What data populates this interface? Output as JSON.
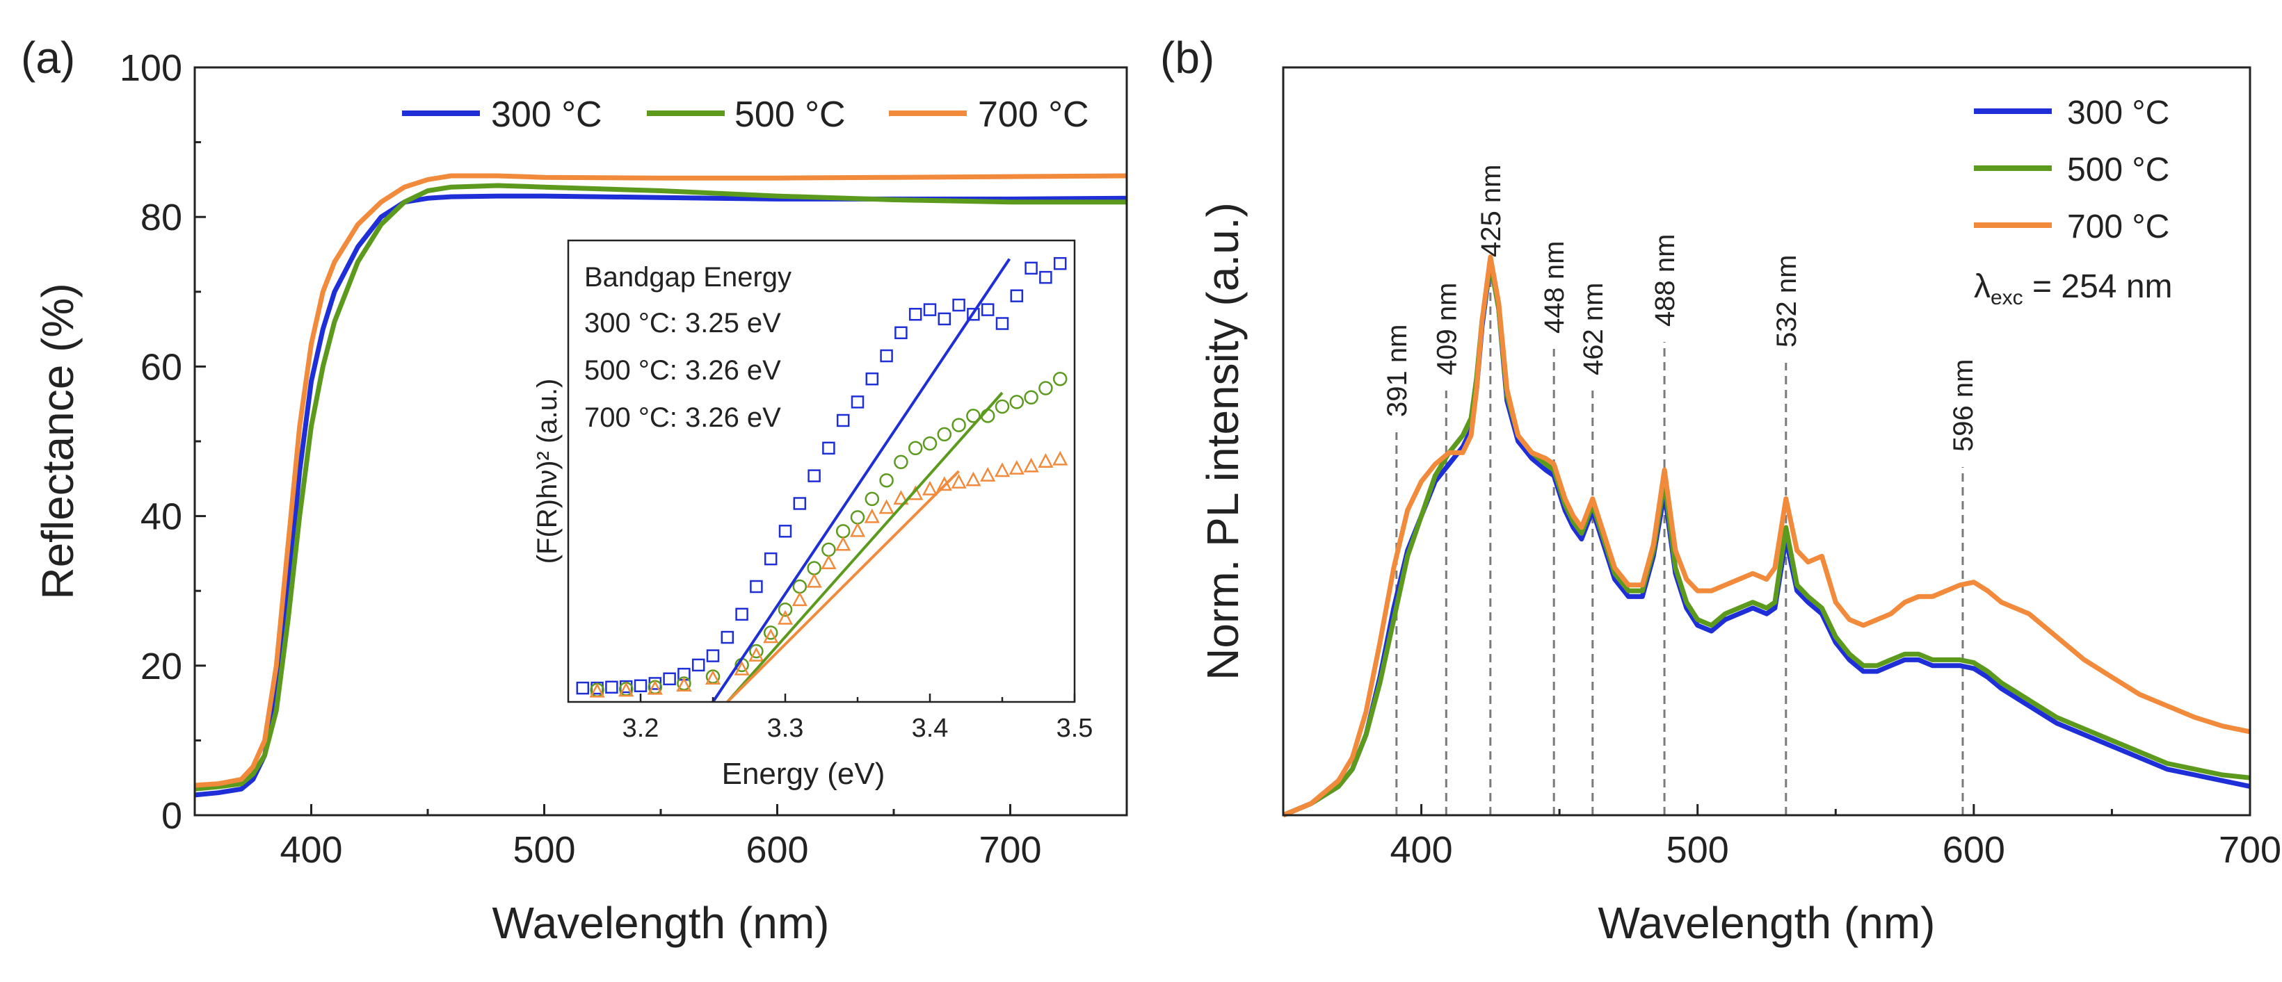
{
  "colors": {
    "c300": "#1f2fd8",
    "c500": "#5c9a1e",
    "c700": "#f28a3c",
    "axis": "#222222",
    "guide": "#7a7a7a"
  },
  "chart_data": [
    {
      "panel": "(a)",
      "type": "line",
      "xlabel": "Wavelength (nm)",
      "ylabel": "Reflectance (%)",
      "xlim": [
        350,
        750
      ],
      "ylim": [
        0,
        100
      ],
      "xticks": [
        400,
        500,
        600,
        700
      ],
      "yticks": [
        0,
        20,
        40,
        60,
        80,
        100
      ],
      "legend": "top-right",
      "series": [
        {
          "name": "300 °C",
          "color": "#1f2fd8",
          "x": [
            350,
            360,
            370,
            375,
            380,
            385,
            390,
            395,
            400,
            405,
            410,
            420,
            430,
            440,
            450,
            460,
            480,
            500,
            550,
            600,
            650,
            700,
            750
          ],
          "y": [
            2.7,
            3.0,
            3.5,
            4.8,
            8,
            16,
            30,
            46,
            58,
            65,
            70,
            76,
            80,
            82,
            82.5,
            82.7,
            82.8,
            82.8,
            82.6,
            82.4,
            82.4,
            82.4,
            82.5
          ]
        },
        {
          "name": "500 °C",
          "color": "#5c9a1e",
          "x": [
            350,
            360,
            370,
            375,
            380,
            385,
            390,
            395,
            400,
            405,
            410,
            420,
            430,
            440,
            450,
            460,
            480,
            500,
            550,
            600,
            650,
            700,
            750
          ],
          "y": [
            3.5,
            3.8,
            4.2,
            5.5,
            8,
            14,
            26,
            40,
            52,
            60,
            66,
            74,
            79,
            82,
            83.5,
            84,
            84.2,
            84,
            83.5,
            82.8,
            82.3,
            82.0,
            82.0
          ]
        },
        {
          "name": "700 °C",
          "color": "#f28a3c",
          "x": [
            350,
            360,
            370,
            375,
            380,
            385,
            390,
            395,
            400,
            405,
            410,
            420,
            430,
            440,
            450,
            460,
            480,
            500,
            550,
            600,
            650,
            700,
            750
          ],
          "y": [
            4.0,
            4.2,
            4.8,
            6.5,
            10,
            20,
            36,
            52,
            63,
            70,
            74,
            79,
            82,
            84,
            85,
            85.5,
            85.5,
            85.3,
            85.2,
            85.2,
            85.3,
            85.4,
            85.5
          ]
        }
      ]
    },
    {
      "panel": "inset",
      "type": "scatter",
      "xlabel": "Energy (eV)",
      "ylabel": "(F(R)hν)² (a.u.)",
      "xlim": [
        3.15,
        3.5
      ],
      "ylim": [
        0,
        100
      ],
      "xticks": [
        3.2,
        3.3,
        3.4,
        3.5
      ],
      "annotations": [
        "Bandgap Energy",
        "300 °C: 3.25 eV",
        "500 °C: 3.26 eV",
        "700 °C: 3.26 eV"
      ],
      "series": [
        {
          "name": "300 °C",
          "color": "#1f2fd8",
          "marker": "square",
          "x": [
            3.15,
            3.16,
            3.17,
            3.18,
            3.19,
            3.2,
            3.21,
            3.22,
            3.23,
            3.24,
            3.25,
            3.26,
            3.27,
            3.28,
            3.29,
            3.3,
            3.31,
            3.32,
            3.33,
            3.34,
            3.35,
            3.36,
            3.37,
            3.38,
            3.39,
            3.4,
            3.41,
            3.42,
            3.43,
            3.44,
            3.45,
            3.46,
            3.47,
            3.48,
            3.49,
            3.5
          ],
          "y": [
            3,
            3,
            3,
            3.2,
            3.3,
            3.5,
            4,
            5,
            6,
            8,
            10,
            14,
            19,
            25,
            31,
            37,
            43,
            49,
            55,
            61,
            65,
            70,
            75,
            80,
            84,
            85,
            83,
            86,
            84,
            85,
            82,
            88,
            94,
            92,
            95,
            96
          ]
        },
        {
          "name": "500 °C",
          "color": "#5c9a1e",
          "marker": "circle",
          "x": [
            3.15,
            3.17,
            3.19,
            3.21,
            3.23,
            3.25,
            3.27,
            3.28,
            3.29,
            3.3,
            3.31,
            3.32,
            3.33,
            3.34,
            3.35,
            3.36,
            3.37,
            3.38,
            3.39,
            3.4,
            3.41,
            3.42,
            3.43,
            3.44,
            3.45,
            3.46,
            3.47,
            3.48,
            3.49,
            3.5
          ],
          "y": [
            2.5,
            2.6,
            2.8,
            3.2,
            4,
            5.5,
            8,
            11,
            15,
            20,
            25,
            29,
            33,
            37,
            40,
            44,
            48,
            52,
            55,
            56,
            58,
            60,
            62,
            62,
            64,
            65,
            66,
            68,
            70,
            72
          ]
        },
        {
          "name": "700 °C",
          "color": "#f28a3c",
          "marker": "triangle",
          "x": [
            3.15,
            3.17,
            3.19,
            3.21,
            3.23,
            3.25,
            3.27,
            3.28,
            3.29,
            3.3,
            3.31,
            3.32,
            3.33,
            3.34,
            3.35,
            3.36,
            3.37,
            3.38,
            3.39,
            3.4,
            3.41,
            3.42,
            3.43,
            3.44,
            3.45,
            3.46,
            3.47,
            3.48,
            3.49,
            3.5
          ],
          "y": [
            2,
            2.2,
            2.4,
            2.8,
            3.5,
            5,
            7,
            10,
            14,
            18,
            22,
            26,
            30,
            34,
            37,
            40,
            42,
            44,
            45,
            46,
            47,
            47.5,
            48,
            49,
            50,
            50.5,
            51,
            52,
            52.5,
            53
          ]
        }
      ],
      "fits": [
        {
          "color": "#1f2fd8",
          "x": [
            3.25,
            3.455
          ],
          "y": [
            0,
            96
          ]
        },
        {
          "color": "#5c9a1e",
          "x": [
            3.26,
            3.45
          ],
          "y": [
            0,
            67
          ]
        },
        {
          "color": "#f28a3c",
          "x": [
            3.26,
            3.42
          ],
          "y": [
            0,
            50
          ]
        }
      ]
    },
    {
      "panel": "(b)",
      "type": "line",
      "xlabel": "Wavelength (nm)",
      "ylabel": "Norm. PL intensity (a.u.)",
      "xlim": [
        350,
        700
      ],
      "ylim": [
        0,
        100
      ],
      "xticks": [
        400,
        500,
        600,
        700
      ],
      "legend": "top-right",
      "excitation_label": "λexc = 254 nm",
      "peak_labels": [
        "391 nm",
        "409 nm",
        "425 nm",
        "448 nm",
        "462 nm",
        "488 nm",
        "532 nm",
        "596 nm"
      ],
      "peaks": [
        391,
        409,
        425,
        448,
        462,
        488,
        532,
        596
      ],
      "series": [
        {
          "name": "300 °C",
          "color": "#1f2fd8",
          "x": [
            350,
            360,
            370,
            375,
            380,
            385,
            390,
            395,
            400,
            405,
            410,
            415,
            418,
            420,
            422,
            425,
            428,
            431,
            435,
            440,
            445,
            448,
            452,
            455,
            458,
            462,
            466,
            470,
            475,
            480,
            484,
            488,
            492,
            496,
            500,
            505,
            510,
            515,
            520,
            525,
            528,
            532,
            536,
            540,
            545,
            550,
            555,
            560,
            565,
            570,
            575,
            580,
            585,
            590,
            595,
            600,
            605,
            610,
            620,
            630,
            640,
            650,
            660,
            670,
            680,
            690,
            700
          ],
          "y": [
            0,
            2,
            5,
            8,
            14,
            24,
            36,
            46,
            52,
            58,
            61,
            64,
            67,
            74,
            85,
            96,
            88,
            72,
            65,
            62,
            60,
            59,
            53,
            50,
            48,
            53,
            47,
            41,
            38,
            38,
            45,
            56,
            42,
            36,
            33,
            32,
            34,
            35,
            36,
            35,
            36,
            48,
            39,
            37,
            35,
            30,
            27,
            25,
            25,
            26,
            27,
            27,
            26,
            26,
            26,
            25.5,
            24,
            22,
            19,
            16,
            14,
            12,
            10,
            8,
            7,
            6,
            5
          ]
        },
        {
          "name": "500 °C",
          "color": "#5c9a1e",
          "x": [
            350,
            360,
            370,
            375,
            380,
            385,
            390,
            395,
            400,
            405,
            410,
            415,
            418,
            420,
            422,
            425,
            428,
            431,
            435,
            440,
            445,
            448,
            452,
            455,
            458,
            462,
            466,
            470,
            475,
            480,
            484,
            488,
            492,
            496,
            500,
            505,
            510,
            515,
            520,
            525,
            528,
            532,
            536,
            540,
            545,
            550,
            555,
            560,
            565,
            570,
            575,
            580,
            585,
            590,
            595,
            600,
            605,
            610,
            620,
            630,
            640,
            650,
            660,
            670,
            680,
            690,
            700
          ],
          "y": [
            0,
            2,
            5,
            8,
            14,
            23,
            34,
            45,
            52,
            59,
            63,
            66,
            69,
            76,
            86,
            96,
            88,
            73,
            66,
            63,
            61,
            60,
            54,
            51,
            49,
            54,
            48,
            42,
            39,
            39,
            46,
            58,
            43,
            37,
            34,
            33,
            35,
            36,
            37,
            36,
            37,
            50,
            40,
            38,
            36,
            31,
            28,
            26,
            26,
            27,
            28,
            28,
            27,
            27,
            27,
            26.5,
            25,
            23,
            20,
            17,
            15,
            13,
            11,
            9,
            8,
            7,
            6.5
          ]
        },
        {
          "name": "700 °C",
          "color": "#f28a3c",
          "x": [
            350,
            360,
            370,
            375,
            380,
            385,
            390,
            395,
            400,
            405,
            410,
            415,
            418,
            420,
            422,
            425,
            428,
            431,
            435,
            440,
            445,
            448,
            452,
            455,
            458,
            462,
            466,
            470,
            475,
            480,
            484,
            488,
            492,
            496,
            500,
            505,
            510,
            515,
            520,
            525,
            528,
            532,
            536,
            540,
            545,
            550,
            555,
            560,
            565,
            570,
            575,
            580,
            585,
            590,
            595,
            600,
            605,
            610,
            620,
            630,
            640,
            650,
            660,
            670,
            680,
            690,
            700
          ],
          "y": [
            0,
            2,
            6,
            10,
            18,
            30,
            43,
            53,
            58,
            61,
            63,
            63,
            66,
            74,
            86,
            97,
            89,
            74,
            66,
            63,
            62,
            61,
            55,
            52,
            50,
            55,
            49,
            43,
            40,
            40,
            47,
            60,
            46,
            41,
            39,
            39,
            40,
            41,
            42,
            41,
            43,
            55,
            46,
            44,
            45,
            37,
            34,
            33,
            34,
            35,
            37,
            38,
            38,
            39,
            40,
            40.5,
            39,
            37,
            35,
            31,
            27,
            24,
            21,
            19,
            17,
            15.5,
            14.5
          ]
        }
      ]
    }
  ],
  "panel_labels": {
    "a": "(a)",
    "b": "(b)"
  },
  "inset_text": {
    "title": "Bandgap Energy",
    "line300": "300 °C: 3.25 eV",
    "line500": "500 °C: 3.26 eV",
    "line700": "700 °C: 3.26 eV"
  },
  "legend_labels": {
    "s300": "300 °C",
    "s500": "500 °C",
    "s700": "700 °C"
  },
  "excitation": {
    "lambda": "λ",
    "sub": "exc",
    "rest": " = 254 nm"
  }
}
